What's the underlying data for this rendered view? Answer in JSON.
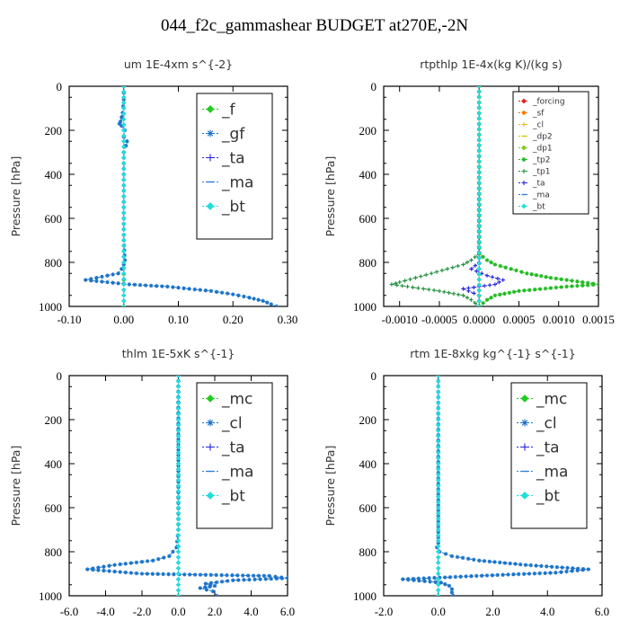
{
  "title": "044_f2c_gammashear  BUDGET at270E,-2N",
  "chart_data": [
    {
      "type": "line",
      "title": "um  1E-4xm s^{-2}",
      "ylabel": "Pressure [hPa]",
      "xlim": [
        -0.1,
        0.3
      ],
      "ylim": [
        1000,
        0
      ],
      "xticks": [
        "-0.10",
        "0.00",
        "0.10",
        "0.20",
        "0.30"
      ],
      "xtick_values": [
        -0.1,
        0.0,
        0.1,
        0.2,
        0.3
      ],
      "yticks": [
        "0",
        "200",
        "400",
        "600",
        "800",
        "1000"
      ],
      "ytick_values": [
        0,
        200,
        400,
        600,
        800,
        1000
      ],
      "legend_position": "top-right",
      "legend_size": "large",
      "series": [
        {
          "name": "_f",
          "color": "#22cc22",
          "marker": "diamond",
          "y": [
            0,
            100,
            200,
            300,
            400,
            500,
            600,
            700,
            800,
            880,
            900,
            950,
            1000
          ],
          "x": [
            0.0,
            0.0,
            0.0,
            0.0,
            0.0,
            0.0,
            0.0,
            0.0,
            0.0,
            0.0,
            0.0,
            0.0,
            0.0
          ]
        },
        {
          "name": "_gf",
          "color": "#1a73c9",
          "marker": "star",
          "y": [
            0,
            60,
            120,
            160,
            170,
            180,
            200,
            230,
            250,
            270,
            300,
            400,
            500,
            600,
            700,
            790,
            810,
            830,
            850,
            865,
            880,
            900,
            910,
            920,
            930,
            945,
            960,
            975,
            990,
            1000
          ],
          "x": [
            0.0,
            0.0,
            -0.002,
            -0.006,
            -0.008,
            -0.004,
            0.002,
            0.0,
            0.006,
            0.004,
            0.0,
            0.0,
            0.0,
            0.0,
            0.0,
            0.002,
            0.0,
            -0.004,
            -0.01,
            -0.04,
            -0.07,
            0.01,
            0.08,
            0.12,
            0.16,
            0.2,
            0.23,
            0.255,
            0.27,
            0.28
          ]
        },
        {
          "name": "_ta",
          "color": "#2222dd",
          "marker": "plus",
          "y": [
            0,
            200,
            400,
            600,
            800,
            1000
          ],
          "x": [
            0.0,
            0.0,
            0.0,
            0.0,
            0.0,
            0.0
          ]
        },
        {
          "name": "_ma",
          "color": "#2f7dd6",
          "marker": "dash",
          "y": [
            0,
            200,
            400,
            600,
            800,
            1000
          ],
          "x": [
            0.0,
            0.0,
            0.0,
            0.0,
            0.0,
            0.0
          ]
        },
        {
          "name": "_bt",
          "color": "#22dddd",
          "marker": "diamond",
          "y": [
            0,
            200,
            400,
            600,
            800,
            1000
          ],
          "x": [
            0.0,
            0.0,
            0.0,
            0.0,
            0.0,
            0.0
          ]
        }
      ]
    },
    {
      "type": "line",
      "title": "rtpthlp  1E-4x(kg K)/(kg s)",
      "ylabel": "Pressure [hPa]",
      "xlim": [
        -0.0012,
        0.0015
      ],
      "ylim": [
        1000,
        0
      ],
      "xticks": [
        "-0.0010",
        "-0.0005",
        "0.0000",
        "0.0005",
        "0.0010",
        "0.0015"
      ],
      "xtick_values": [
        -0.001,
        -0.0005,
        0.0,
        0.0005,
        0.001,
        0.0015
      ],
      "yticks": [
        "0",
        "200",
        "400",
        "600",
        "800",
        "1000"
      ],
      "ytick_values": [
        0,
        200,
        400,
        600,
        800,
        1000
      ],
      "legend_position": "top-right",
      "legend_size": "small",
      "series": [
        {
          "name": "_forcing",
          "color": "#dd2222",
          "marker": "diamond",
          "y": [
            0,
            1000
          ],
          "x": [
            0.0,
            0.0
          ]
        },
        {
          "name": "_sf",
          "color": "#ee7700",
          "marker": "star",
          "y": [
            0,
            1000
          ],
          "x": [
            0.0,
            0.0
          ]
        },
        {
          "name": "_cl",
          "color": "#eebb22",
          "marker": "plus",
          "y": [
            0,
            1000
          ],
          "x": [
            0.0,
            0.0
          ]
        },
        {
          "name": "_dp2",
          "color": "#cccc00",
          "marker": "dash",
          "y": [
            0,
            1000
          ],
          "x": [
            0.0,
            0.0
          ]
        },
        {
          "name": "_dp1",
          "color": "#77cc22",
          "marker": "diamond",
          "y": [
            0,
            1000
          ],
          "x": [
            0.0,
            0.0
          ]
        },
        {
          "name": "_tp2",
          "color": "#22bb22",
          "marker": "star",
          "y": [
            0,
            760,
            790,
            810,
            830,
            850,
            870,
            890,
            900,
            910,
            930,
            950,
            970,
            1000
          ],
          "x": [
            0.0,
            0.0,
            0.0001,
            0.0002,
            0.0004,
            0.0006,
            0.0009,
            0.0013,
            0.0015,
            0.0011,
            0.0005,
            0.0002,
            0.0001,
            0.0
          ]
        },
        {
          "name": "_tp1",
          "color": "#1f8f3a",
          "marker": "plus",
          "y": [
            0,
            760,
            790,
            810,
            830,
            850,
            870,
            890,
            900,
            910,
            930,
            950,
            970,
            1000
          ],
          "x": [
            0.0,
            0.0,
            -0.0001,
            -0.0002,
            -0.0004,
            -0.0006,
            -0.0008,
            -0.001,
            -0.0011,
            -0.0009,
            -0.0005,
            -0.0002,
            -0.0001,
            0.0
          ]
        },
        {
          "name": "_ta",
          "color": "#2222dd",
          "marker": "plus",
          "y": [
            0,
            800,
            830,
            860,
            880,
            900,
            920,
            950,
            1000
          ],
          "x": [
            0.0,
            0.0,
            -0.0001,
            0.0001,
            0.0003,
            0.0002,
            -0.0002,
            0.0,
            0.0
          ]
        },
        {
          "name": "_ma",
          "color": "#2f7dd6",
          "marker": "dash",
          "y": [
            0,
            1000
          ],
          "x": [
            0.0,
            0.0
          ]
        },
        {
          "name": "_bt",
          "color": "#22dddd",
          "marker": "diamond",
          "y": [
            0,
            1000
          ],
          "x": [
            0.0,
            0.0
          ]
        }
      ]
    },
    {
      "type": "line",
      "title": "thlm  1E-5xK s^{-1}",
      "ylabel": "Pressure [hPa]",
      "xlim": [
        -6.0,
        6.0
      ],
      "ylim": [
        1000,
        0
      ],
      "xticks": [
        "-6.0",
        "-4.0",
        "-2.0",
        "0.0",
        "2.0",
        "4.0",
        "6.0"
      ],
      "xtick_values": [
        -6.0,
        -4.0,
        -2.0,
        0.0,
        2.0,
        4.0,
        6.0
      ],
      "yticks": [
        "0",
        "200",
        "400",
        "600",
        "800",
        "1000"
      ],
      "ytick_values": [
        0,
        200,
        400,
        600,
        800,
        1000
      ],
      "legend_position": "top-right",
      "legend_size": "large",
      "series": [
        {
          "name": "_mc",
          "color": "#22cc22",
          "marker": "diamond",
          "y": [
            0,
            100,
            200,
            300,
            400,
            500,
            600,
            700,
            800,
            900,
            1000
          ],
          "x": [
            0.0,
            0.0,
            0.0,
            0.0,
            0.0,
            0.0,
            0.0,
            0.0,
            0.0,
            0.0,
            0.0
          ]
        },
        {
          "name": "_cl",
          "color": "#1a73c9",
          "marker": "star",
          "y": [
            0,
            700,
            780,
            820,
            840,
            860,
            880,
            900,
            910,
            920,
            930,
            945,
            955,
            965,
            980,
            1000
          ],
          "x": [
            0.0,
            0.0,
            -0.1,
            -0.5,
            -1.4,
            -3.5,
            -5.0,
            -2.0,
            5.0,
            6.0,
            3.0,
            1.5,
            2.0,
            1.2,
            1.9,
            2.1
          ]
        },
        {
          "name": "_ta",
          "color": "#2222dd",
          "marker": "plus",
          "y": [
            0,
            500,
            1000
          ],
          "x": [
            0.0,
            0.0,
            0.0
          ]
        },
        {
          "name": "_ma",
          "color": "#2f7dd6",
          "marker": "dash",
          "y": [
            0,
            500,
            1000
          ],
          "x": [
            0.0,
            0.0,
            0.0
          ]
        },
        {
          "name": "_bt",
          "color": "#22dddd",
          "marker": "diamond",
          "y": [
            0,
            500,
            1000
          ],
          "x": [
            0.0,
            0.0,
            0.0
          ]
        }
      ]
    },
    {
      "type": "line",
      "title": "rtm  1E-8xkg kg^{-1} s^{-1}",
      "ylabel": "Pressure [hPa]",
      "xlim": [
        -2.0,
        6.0
      ],
      "ylim": [
        1000,
        0
      ],
      "xticks": [
        "-2.0",
        "0.0",
        "2.0",
        "4.0",
        "6.0"
      ],
      "xtick_values": [
        -2.0,
        0.0,
        2.0,
        4.0,
        6.0
      ],
      "yticks": [
        "0",
        "200",
        "400",
        "600",
        "800",
        "1000"
      ],
      "ytick_values": [
        0,
        200,
        400,
        600,
        800,
        1000
      ],
      "legend_position": "top-right",
      "legend_size": "large",
      "series": [
        {
          "name": "_mc",
          "color": "#22cc22",
          "marker": "diamond",
          "y": [
            0,
            100,
            200,
            300,
            400,
            500,
            600,
            700,
            800,
            900,
            1000
          ],
          "x": [
            0.0,
            0.0,
            0.0,
            0.0,
            0.0,
            0.0,
            0.0,
            0.0,
            0.0,
            0.0,
            0.0
          ]
        },
        {
          "name": "_cl",
          "color": "#1a73c9",
          "marker": "star",
          "y": [
            0,
            760,
            780,
            800,
            820,
            840,
            860,
            880,
            895,
            910,
            925,
            940,
            955,
            970,
            985,
            1000
          ],
          "x": [
            0.0,
            0.0,
            -0.05,
            0.05,
            0.5,
            1.5,
            3.2,
            5.5,
            4.3,
            1.4,
            -1.3,
            0.1,
            0.4,
            0.5,
            0.5,
            0.55
          ]
        },
        {
          "name": "_ta",
          "color": "#2222dd",
          "marker": "plus",
          "y": [
            0,
            500,
            1000
          ],
          "x": [
            0.0,
            0.0,
            0.0
          ]
        },
        {
          "name": "_ma",
          "color": "#2f7dd6",
          "marker": "dash",
          "y": [
            0,
            500,
            1000
          ],
          "x": [
            0.0,
            0.0,
            0.0
          ]
        },
        {
          "name": "_bt",
          "color": "#22dddd",
          "marker": "diamond",
          "y": [
            0,
            500,
            1000
          ],
          "x": [
            0.0,
            0.0,
            0.0
          ]
        }
      ]
    }
  ]
}
